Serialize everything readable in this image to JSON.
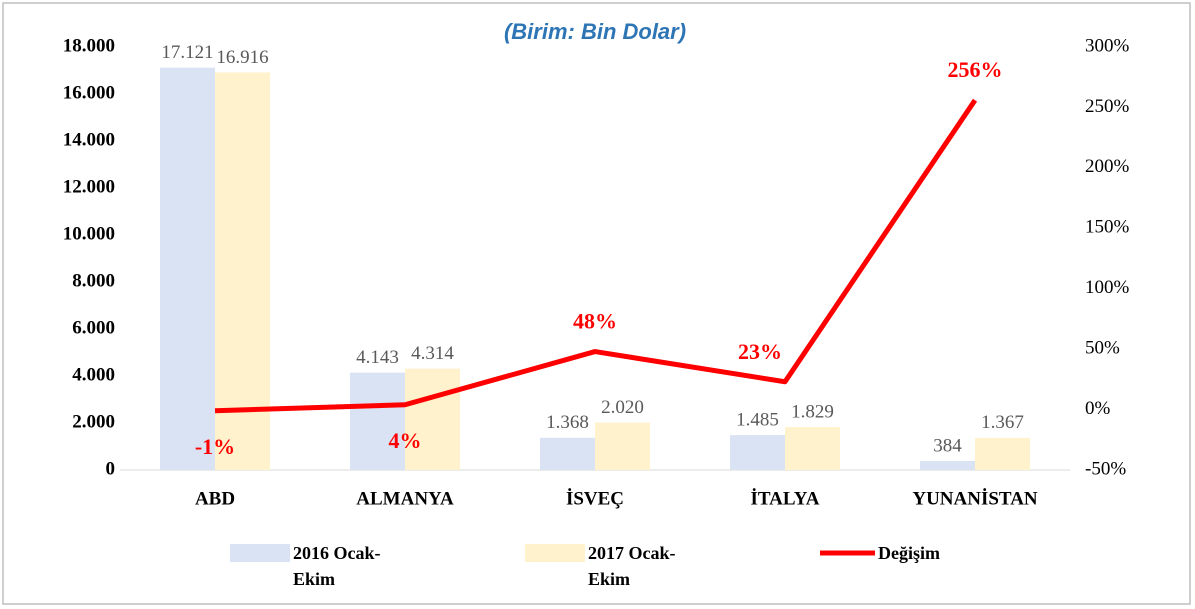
{
  "chart_data": {
    "type": "bar-line",
    "title": "(Birim: Bin Dolar)",
    "categories": [
      "ABD",
      "ALMANYA",
      "İSVEÇ",
      "İTALYA",
      "YUNANİSTAN"
    ],
    "series": [
      {
        "name": "2016 Ocak-Ekim",
        "type": "bar",
        "color": "#dae3f3",
        "values": [
          17121,
          4143,
          1368,
          1485,
          384
        ],
        "value_labels": [
          "17.121",
          "4.143",
          "1.368",
          "1.485",
          "384"
        ]
      },
      {
        "name": "2017 Ocak-Ekim",
        "type": "bar",
        "color": "#fff2cc",
        "values": [
          16916,
          4314,
          2020,
          1829,
          1367
        ],
        "value_labels": [
          "16.916",
          "4.314",
          "2.020",
          "1.829",
          "1.367"
        ]
      },
      {
        "name": "Değişim",
        "type": "line",
        "axis": "y2",
        "color": "#ff0000",
        "values": [
          -1,
          4,
          48,
          23,
          256
        ],
        "value_labels": [
          "-1%",
          "4%",
          "48%",
          "23%",
          "256%"
        ]
      }
    ],
    "ylim": [
      0,
      18000
    ],
    "yticks": [
      0,
      {
        "value": 2000,
        "label": "2.000"
      },
      {
        "value": 4000,
        "label": "4.000"
      },
      {
        "value": 6000,
        "label": "6.000"
      },
      {
        "value": 8000,
        "label": "8.000"
      },
      {
        "value": 10000,
        "label": "10.000"
      },
      {
        "value": 12000,
        "label": "12.000"
      },
      {
        "value": 14000,
        "label": "14.000"
      },
      {
        "value": 16000,
        "label": "16.000"
      },
      {
        "value": 18000,
        "label": "18.000"
      }
    ],
    "y2lim": [
      -50,
      300
    ],
    "y2ticks": [
      {
        "value": -50,
        "label": "-50%"
      },
      {
        "value": 0,
        "label": "0%"
      },
      {
        "value": 50,
        "label": "50%"
      },
      {
        "value": 100,
        "label": "100%"
      },
      {
        "value": 150,
        "label": "150%"
      },
      {
        "value": 200,
        "label": "200%"
      },
      {
        "value": 250,
        "label": "250%"
      },
      {
        "value": 300,
        "label": "300%"
      }
    ],
    "legend": "bottom",
    "grid": false
  }
}
